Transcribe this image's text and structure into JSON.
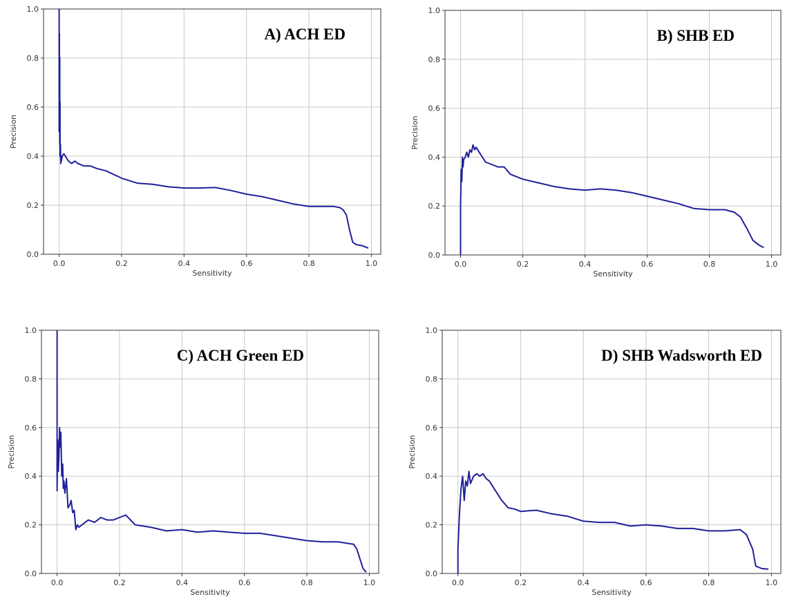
{
  "figure": {
    "line_color": "#1f1f9a",
    "grid_color": "#c8c8c8"
  },
  "chart_data": [
    {
      "type": "line",
      "title": "A) ACH ED",
      "xlabel": "Sensitivity",
      "ylabel": "Precision",
      "xlim": [
        -0.05,
        1.03
      ],
      "ylim": [
        0,
        1
      ],
      "xticks": [
        "0.0",
        "0.2",
        "0.4",
        "0.6",
        "0.8",
        "1.0"
      ],
      "yticks": [
        "0.0",
        "0.2",
        "0.4",
        "0.6",
        "0.8",
        "1.0"
      ],
      "grid": true,
      "series": [
        {
          "x": [
            0.0,
            0.0,
            0.001,
            0.001,
            0.002,
            0.002,
            0.003,
            0.003,
            0.004,
            0.005,
            0.006,
            0.007,
            0.01,
            0.015,
            0.02,
            0.03,
            0.04,
            0.05,
            0.06,
            0.08,
            0.1,
            0.12,
            0.15,
            0.2,
            0.25,
            0.3,
            0.35,
            0.4,
            0.45,
            0.5,
            0.55,
            0.6,
            0.65,
            0.7,
            0.75,
            0.8,
            0.85,
            0.88,
            0.9,
            0.91,
            0.92,
            0.93,
            0.94,
            0.95,
            0.97,
            0.99
          ],
          "y": [
            1.0,
            0.5,
            0.9,
            0.55,
            0.8,
            0.45,
            0.62,
            0.4,
            0.45,
            0.37,
            0.4,
            0.38,
            0.4,
            0.41,
            0.4,
            0.38,
            0.37,
            0.38,
            0.37,
            0.36,
            0.36,
            0.35,
            0.34,
            0.31,
            0.29,
            0.285,
            0.275,
            0.27,
            0.27,
            0.272,
            0.26,
            0.245,
            0.235,
            0.22,
            0.205,
            0.195,
            0.195,
            0.195,
            0.19,
            0.18,
            0.16,
            0.1,
            0.05,
            0.04,
            0.035,
            0.025
          ]
        }
      ]
    },
    {
      "type": "line",
      "title": "B) SHB ED",
      "xlabel": "Sensitivity",
      "ylabel": "Precision",
      "xlim": [
        -0.05,
        1.03
      ],
      "ylim": [
        0,
        1
      ],
      "xticks": [
        "0.0",
        "0.2",
        "0.4",
        "0.6",
        "0.8",
        "1.0"
      ],
      "yticks": [
        "0.0",
        "0.2",
        "0.4",
        "0.6",
        "0.8",
        "1.0"
      ],
      "grid": true,
      "series": [
        {
          "x": [
            0.0,
            0.0,
            0.002,
            0.004,
            0.006,
            0.008,
            0.01,
            0.015,
            0.02,
            0.025,
            0.03,
            0.035,
            0.04,
            0.045,
            0.05,
            0.06,
            0.07,
            0.08,
            0.1,
            0.12,
            0.14,
            0.16,
            0.2,
            0.25,
            0.3,
            0.35,
            0.4,
            0.45,
            0.5,
            0.55,
            0.6,
            0.65,
            0.7,
            0.75,
            0.8,
            0.85,
            0.88,
            0.9,
            0.92,
            0.94,
            0.96,
            0.975
          ],
          "y": [
            0.0,
            0.2,
            0.35,
            0.3,
            0.4,
            0.36,
            0.39,
            0.4,
            0.42,
            0.4,
            0.43,
            0.42,
            0.45,
            0.43,
            0.44,
            0.42,
            0.4,
            0.38,
            0.37,
            0.36,
            0.36,
            0.33,
            0.31,
            0.295,
            0.28,
            0.27,
            0.265,
            0.27,
            0.265,
            0.255,
            0.24,
            0.225,
            0.21,
            0.19,
            0.185,
            0.185,
            0.175,
            0.155,
            0.11,
            0.06,
            0.04,
            0.03
          ]
        }
      ]
    },
    {
      "type": "line",
      "title": "C) ACH Green ED",
      "xlabel": "Sensitivity",
      "ylabel": "Precision",
      "xlim": [
        -0.05,
        1.03
      ],
      "ylim": [
        0,
        1
      ],
      "xticks": [
        "0.0",
        "0.2",
        "0.4",
        "0.6",
        "0.8",
        "1.0"
      ],
      "yticks": [
        "0.0",
        "0.2",
        "0.4",
        "0.6",
        "0.8",
        "1.0"
      ],
      "grid": true,
      "series": [
        {
          "x": [
            0.0,
            0.0,
            0.002,
            0.004,
            0.006,
            0.008,
            0.01,
            0.012,
            0.015,
            0.018,
            0.02,
            0.022,
            0.025,
            0.03,
            0.035,
            0.04,
            0.045,
            0.05,
            0.055,
            0.06,
            0.065,
            0.07,
            0.08,
            0.09,
            0.1,
            0.12,
            0.14,
            0.16,
            0.18,
            0.2,
            0.22,
            0.25,
            0.3,
            0.35,
            0.4,
            0.45,
            0.5,
            0.55,
            0.6,
            0.65,
            0.7,
            0.75,
            0.8,
            0.85,
            0.9,
            0.95,
            0.96,
            0.97,
            0.98,
            0.99
          ],
          "y": [
            1.0,
            0.34,
            0.55,
            0.42,
            0.48,
            0.6,
            0.52,
            0.58,
            0.4,
            0.45,
            0.35,
            0.38,
            0.33,
            0.39,
            0.27,
            0.28,
            0.3,
            0.25,
            0.26,
            0.18,
            0.2,
            0.19,
            0.2,
            0.21,
            0.22,
            0.21,
            0.23,
            0.22,
            0.22,
            0.23,
            0.24,
            0.2,
            0.19,
            0.175,
            0.18,
            0.17,
            0.175,
            0.17,
            0.165,
            0.165,
            0.155,
            0.145,
            0.135,
            0.13,
            0.13,
            0.12,
            0.1,
            0.06,
            0.02,
            0.005
          ]
        }
      ]
    },
    {
      "type": "line",
      "title": "D) SHB Wadsworth ED",
      "xlabel": "Sensitivity",
      "ylabel": "Precision",
      "xlim": [
        -0.05,
        1.03
      ],
      "ylim": [
        0,
        1
      ],
      "xticks": [
        "0.0",
        "0.2",
        "0.4",
        "0.6",
        "0.8",
        "1.0"
      ],
      "yticks": [
        "0.0",
        "0.2",
        "0.4",
        "0.6",
        "0.8",
        "1.0"
      ],
      "grid": true,
      "series": [
        {
          "x": [
            0.0,
            0.0,
            0.005,
            0.01,
            0.015,
            0.02,
            0.025,
            0.03,
            0.035,
            0.04,
            0.05,
            0.06,
            0.07,
            0.08,
            0.09,
            0.1,
            0.12,
            0.14,
            0.16,
            0.18,
            0.2,
            0.25,
            0.3,
            0.35,
            0.4,
            0.45,
            0.5,
            0.55,
            0.6,
            0.65,
            0.7,
            0.75,
            0.8,
            0.85,
            0.9,
            0.92,
            0.94,
            0.95,
            0.97,
            0.99
          ],
          "y": [
            0.0,
            0.1,
            0.25,
            0.35,
            0.4,
            0.3,
            0.38,
            0.36,
            0.42,
            0.37,
            0.4,
            0.41,
            0.4,
            0.41,
            0.39,
            0.38,
            0.34,
            0.3,
            0.27,
            0.265,
            0.255,
            0.26,
            0.245,
            0.235,
            0.215,
            0.21,
            0.21,
            0.195,
            0.2,
            0.195,
            0.185,
            0.185,
            0.175,
            0.175,
            0.18,
            0.16,
            0.1,
            0.03,
            0.02,
            0.018
          ]
        }
      ]
    }
  ]
}
